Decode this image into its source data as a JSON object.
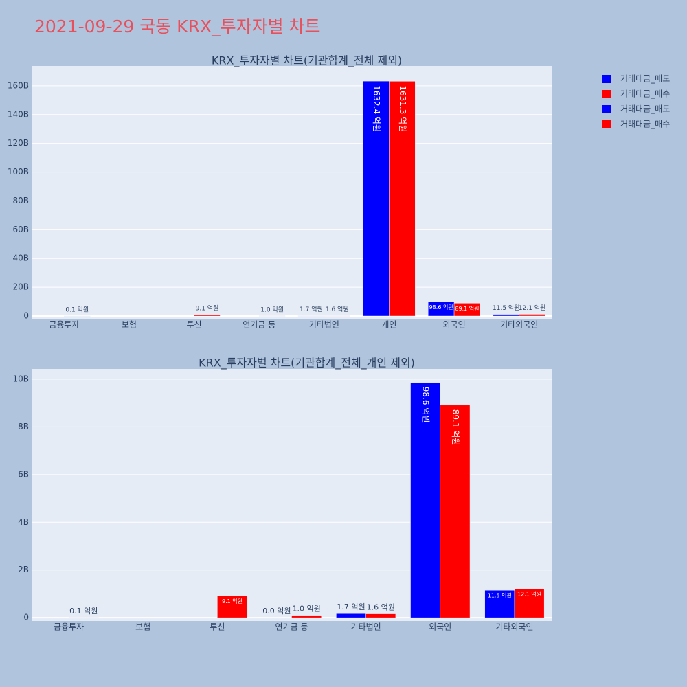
{
  "title": "2021-09-29 국동 KRX_투자자별 차트",
  "chart_data": [
    {
      "type": "bar",
      "title": "KRX_투자자별 차트(기관합계_전체 제외)",
      "categories": [
        "금융투자",
        "보험",
        "투신",
        "연기금 등",
        "기타법인",
        "개인",
        "외국인",
        "기타외국인"
      ],
      "series": [
        {
          "name": "거래대금_매도",
          "color": "#0000ff",
          "values": [
            null,
            null,
            null,
            null,
            0.17,
            163.24,
            9.86,
            1.15
          ],
          "value_labels": [
            null,
            null,
            null,
            null,
            "1.7 억원",
            "1632.4 억원",
            "98.6 억원",
            "11.5 억원"
          ]
        },
        {
          "name": "거래대금_매수",
          "color": "#ff0000",
          "values": [
            0.01,
            null,
            0.91,
            0.1,
            0.16,
            163.13,
            8.91,
            1.21
          ],
          "value_labels": [
            "0.1 억원",
            null,
            "9.1 억원",
            "1.0 억원",
            "1.6 억원",
            "1631.3 억원",
            "89.1 억원",
            "12.1 억원"
          ]
        }
      ],
      "ylim": [
        -1.9,
        173.8
      ],
      "yticks": [
        0,
        {
          "value": 20,
          "label": "20B"
        },
        {
          "value": 40,
          "label": "40B"
        },
        {
          "value": 60,
          "label": "60B"
        },
        {
          "value": 80,
          "label": "80B"
        },
        {
          "value": 100,
          "label": "100B"
        },
        {
          "value": 120,
          "label": "120B"
        },
        {
          "value": 140,
          "label": "140B"
        },
        {
          "value": 160,
          "label": "160B"
        }
      ],
      "grid": true
    },
    {
      "type": "bar",
      "title": "KRX_투자자별 차트(기관합계_전체_개인 제외)",
      "categories": [
        "금융투자",
        "보험",
        "투신",
        "연기금 등",
        "기타법인",
        "외국인",
        "기타외국인"
      ],
      "series": [
        {
          "name": "거래대금_매도",
          "color": "#0000ff",
          "values": [
            null,
            null,
            null,
            0.0,
            0.17,
            9.86,
            1.15
          ],
          "value_labels": [
            null,
            null,
            null,
            "0.0 억원",
            "1.7 억원",
            "98.6 억원",
            "11.5 억원"
          ]
        },
        {
          "name": "거래대금_매수",
          "color": "#ff0000",
          "values": [
            0.01,
            null,
            0.91,
            0.1,
            0.16,
            8.91,
            1.21
          ],
          "value_labels": [
            "0.1 억원",
            null,
            "9.1 억원",
            "1.0 억원",
            "1.6 억원",
            "89.1 억원",
            "12.1 억원"
          ]
        }
      ],
      "ylim": [
        -0.14,
        10.43
      ],
      "yticks": [
        0,
        {
          "value": 2,
          "label": "2B"
        },
        {
          "value": 4,
          "label": "4B"
        },
        {
          "value": 6,
          "label": "6B"
        },
        {
          "value": 8,
          "label": "8B"
        },
        {
          "value": 10,
          "label": "10B"
        }
      ],
      "grid": true
    }
  ]
}
